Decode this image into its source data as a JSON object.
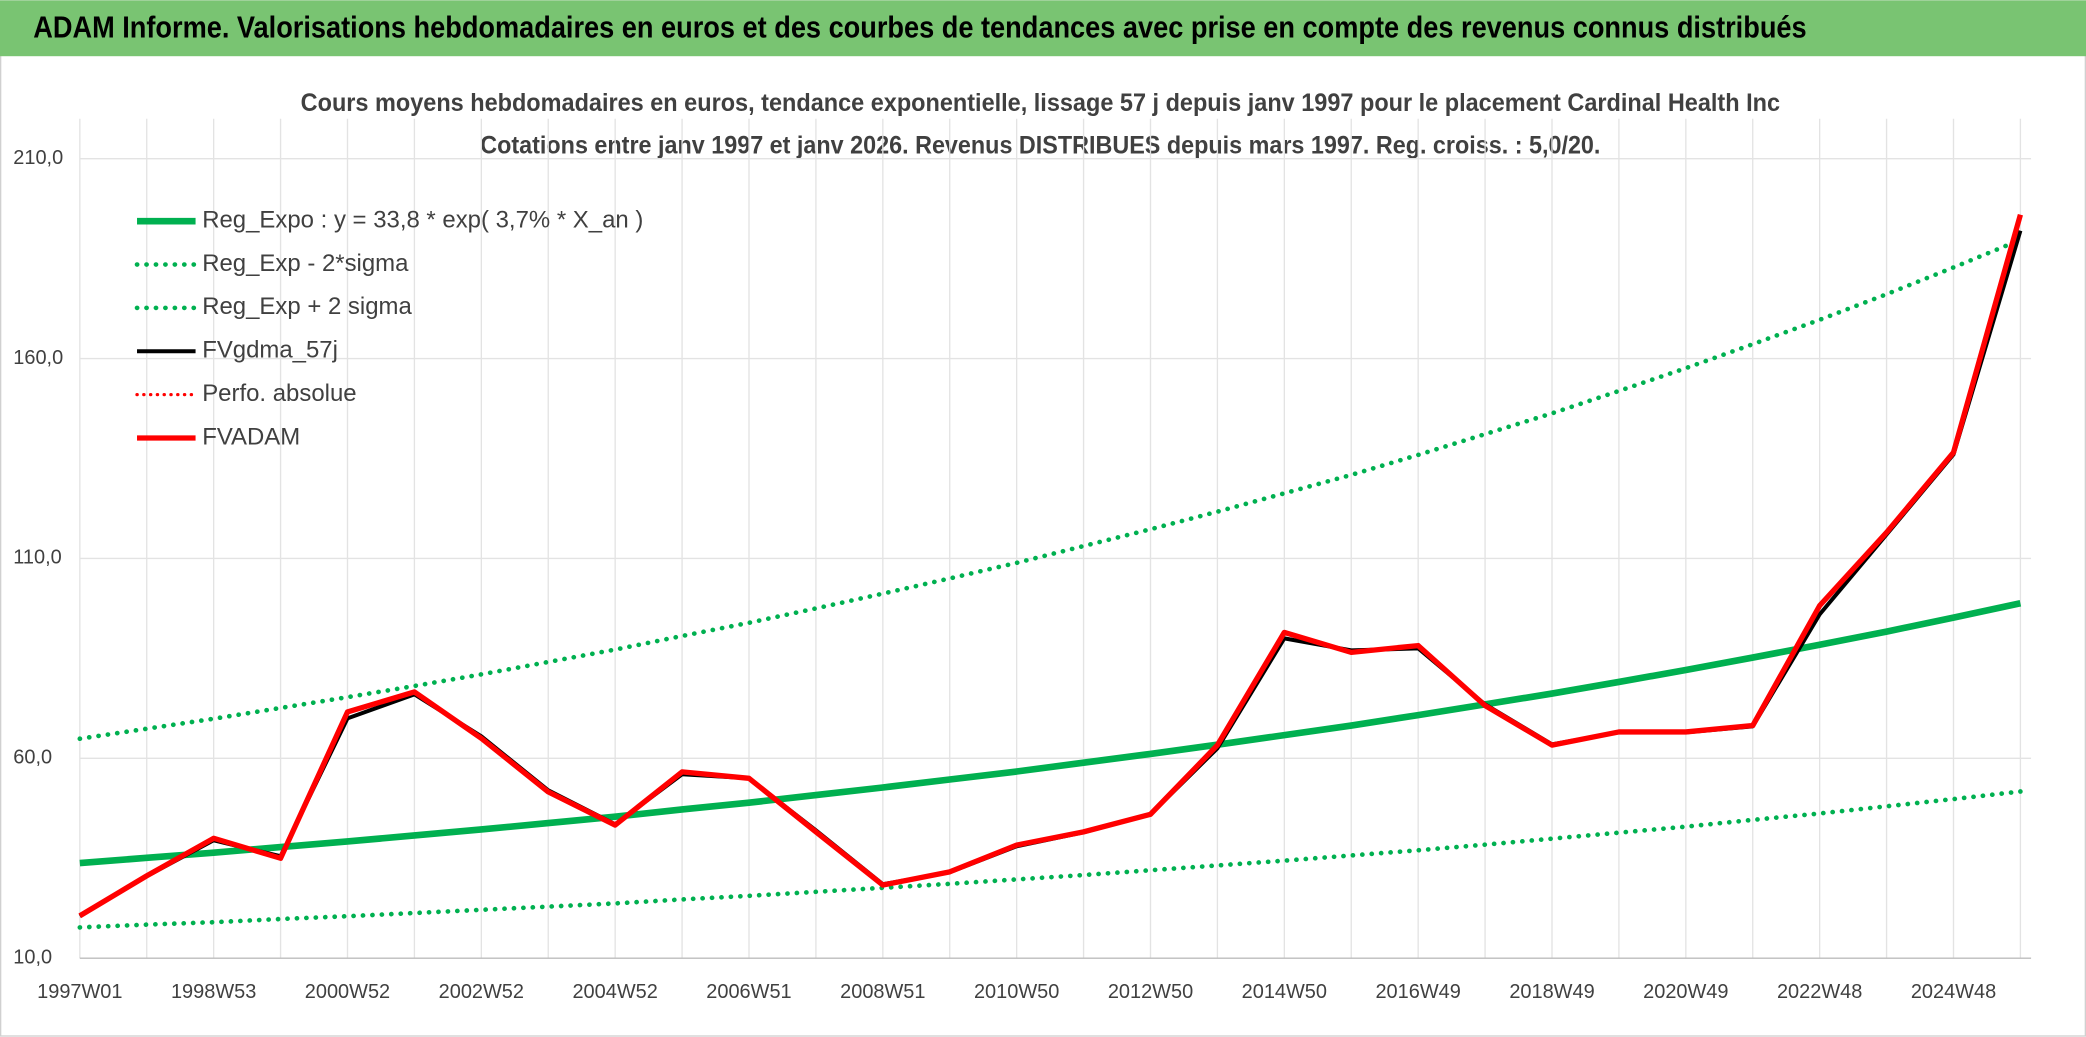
{
  "header": {
    "title": "ADAM Informe. Valorisations hebdomadaires en euros et des courbes de tendances avec prise en compte des revenus connus distribués"
  },
  "chart_data": {
    "type": "line",
    "title": "Cours moyens hebdomadaires en euros, tendance exponentielle, lissage 57 j depuis janv 1997 pour le placement Cardinal Health Inc",
    "subtitle": "Cotations entre janv 1997 et janv 2026. Revenus DISTRIBUES depuis mars 1997. Reg. croiss. : 5,0/20.",
    "x": [
      "1997W01",
      null,
      "1998W53",
      null,
      "2000W52",
      null,
      "2002W52",
      null,
      "2004W52",
      null,
      "2006W51",
      null,
      "2008W51",
      null,
      "2010W50",
      null,
      "2012W50",
      null,
      "2014W50",
      null,
      "2016W49",
      null,
      "2018W49",
      null,
      "2020W49",
      null,
      "2022W48",
      null,
      "2024W48",
      null
    ],
    "ylim": [
      10,
      220
    ],
    "yticks": [
      {
        "value": 10,
        "label": "10,0"
      },
      {
        "value": 60,
        "label": "60,0"
      },
      {
        "value": 110,
        "label": "110,0"
      },
      {
        "value": 160,
        "label": "160,0"
      },
      {
        "value": 210,
        "label": "210,0"
      }
    ],
    "grid": true,
    "legend": "upper left",
    "series": [
      {
        "name": "Reg_Expo : y = 33,8 * exp( 3,7% *  X_an )",
        "color": "#00b050",
        "style": "solid",
        "width": 5,
        "values": [
          33.8,
          35.1,
          36.4,
          37.8,
          39.2,
          40.7,
          42.2,
          43.8,
          45.4,
          47.2,
          48.9,
          50.8,
          52.7,
          54.7,
          56.7,
          58.9,
          61.1,
          63.4,
          65.8,
          68.2,
          70.8,
          73.5,
          76.2,
          79.1,
          82.1,
          85.2,
          88.4,
          91.7,
          95.2,
          98.8
        ]
      },
      {
        "name": "Reg_Exp - 2*sigma",
        "color": "#00b050",
        "style": "dotted",
        "width": 3.5,
        "values": [
          17.7,
          18.4,
          19.0,
          19.8,
          20.5,
          21.3,
          22.1,
          22.9,
          23.7,
          24.7,
          25.6,
          26.6,
          27.6,
          28.6,
          29.7,
          30.8,
          32.0,
          33.2,
          34.4,
          35.7,
          37.0,
          38.4,
          39.9,
          41.4,
          42.9,
          44.6,
          46.2,
          48.0,
          49.8,
          51.7
        ]
      },
      {
        "name": "Reg_Exp + 2 sigma",
        "color": "#00b050",
        "style": "dotted",
        "width": 3.5,
        "values": [
          64.9,
          67.4,
          69.9,
          72.6,
          75.3,
          78.1,
          81.0,
          84.1,
          87.2,
          90.6,
          93.9,
          97.5,
          101.2,
          105.0,
          108.9,
          113.1,
          117.3,
          121.7,
          126.3,
          130.9,
          135.9,
          141.1,
          146.3,
          151.9,
          157.6,
          163.6,
          169.7,
          176.1,
          182.8,
          189.7
        ]
      },
      {
        "name": "FVgdma_57j",
        "color": "#000000",
        "style": "solid",
        "width": 3,
        "values": [
          20.5,
          30.5,
          39.5,
          35.5,
          70,
          76,
          65.5,
          52,
          43.5,
          56,
          55,
          42,
          28.5,
          31.5,
          38,
          41.5,
          46,
          62.5,
          90,
          87,
          87.5,
          73.5,
          63.5,
          66.5,
          66.5,
          68,
          96,
          116,
          136,
          192
        ]
      },
      {
        "name": "Perfo. absolue",
        "color": "#ff0000",
        "style": "dotted",
        "width": 2.5,
        "values": [
          null,
          null,
          null,
          null,
          null,
          null,
          null,
          null,
          null,
          null,
          null,
          null,
          null,
          null,
          null,
          null,
          null,
          null,
          null,
          null,
          null,
          null,
          null,
          null,
          null,
          null,
          null,
          null,
          null,
          null
        ]
      },
      {
        "name": "FVADAM",
        "color": "#ff0000",
        "style": "solid",
        "width": 4,
        "values": [
          20.6,
          30.6,
          40,
          35,
          71.6,
          76.6,
          65,
          51.6,
          43.3,
          56.6,
          55,
          41.6,
          28.3,
          31.6,
          38.3,
          41.6,
          46,
          63.3,
          91.5,
          86.5,
          88.2,
          73.2,
          63.3,
          66.6,
          66.6,
          68.2,
          98.2,
          116.5,
          136.5,
          196
        ]
      }
    ]
  }
}
